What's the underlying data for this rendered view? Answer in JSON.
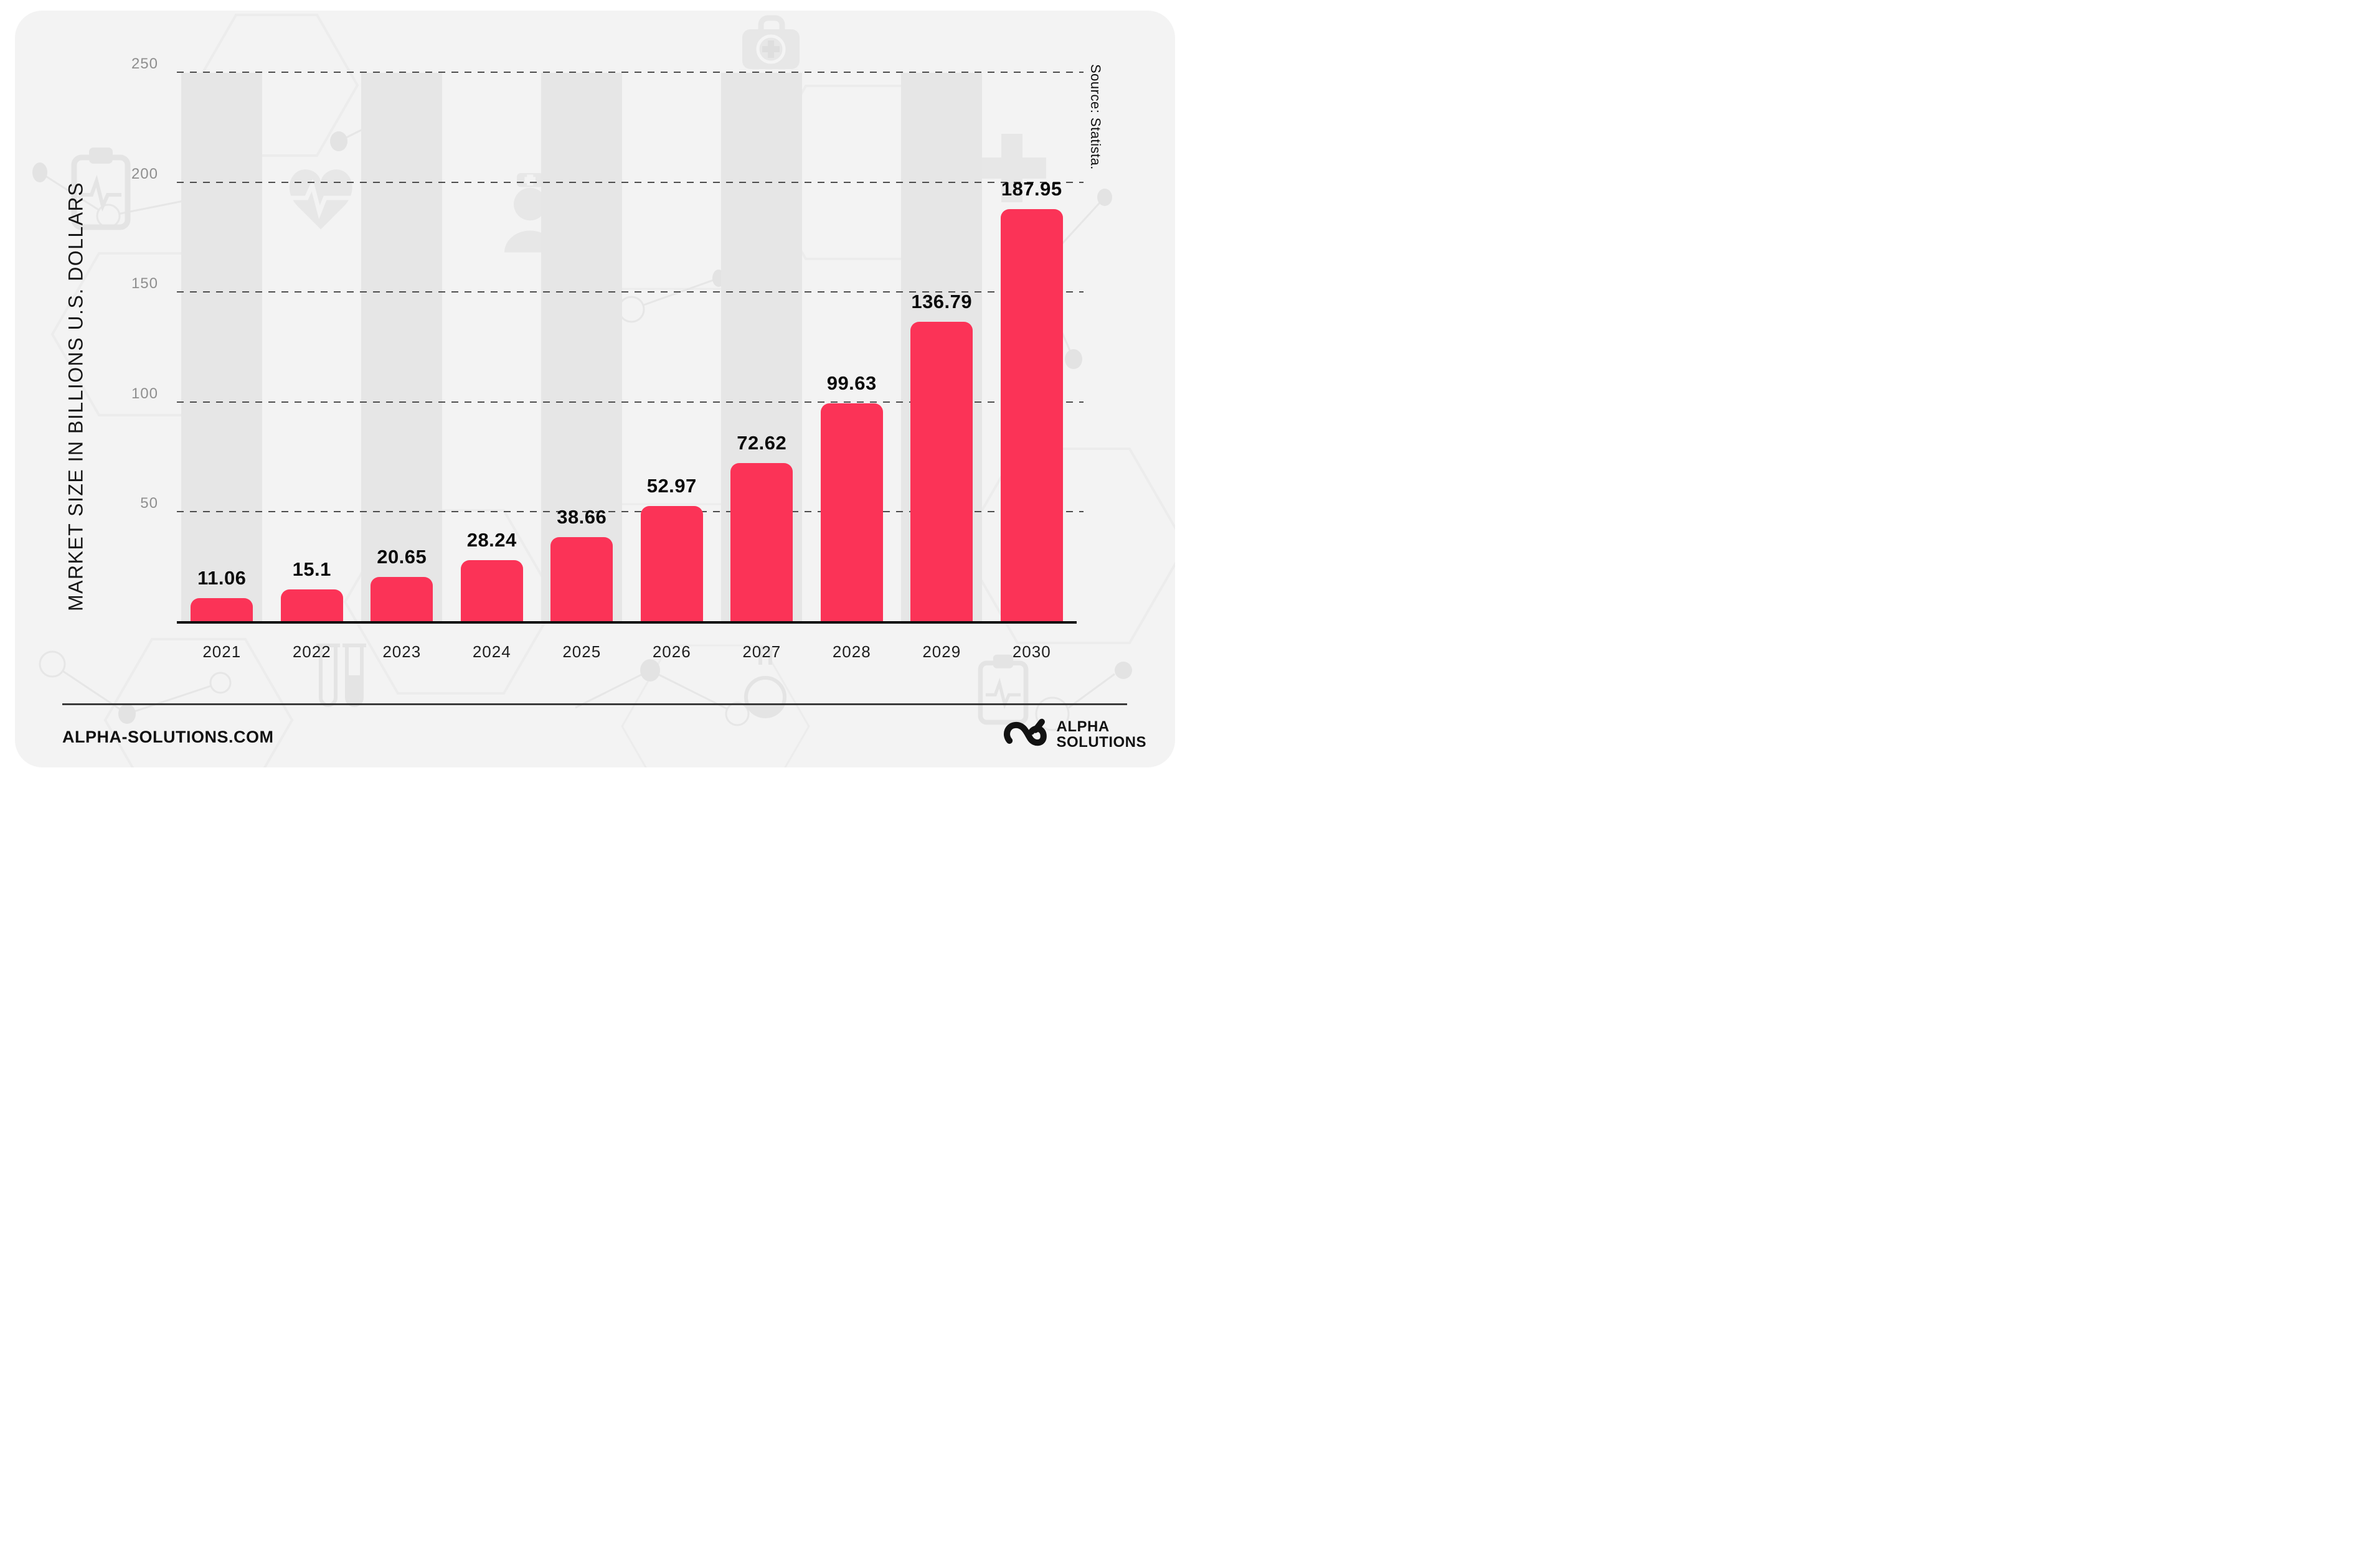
{
  "page": {
    "background": "#ffffff",
    "card_background": "#f3f3f3"
  },
  "chart_data": {
    "type": "bar",
    "title": "",
    "categories": [
      "2021",
      "2022",
      "2023",
      "2024",
      "2025",
      "2026",
      "2027",
      "2028",
      "2029",
      "2030"
    ],
    "values": [
      11.06,
      15.1,
      20.65,
      28.24,
      38.66,
      52.97,
      72.62,
      99.63,
      136.79,
      187.95
    ],
    "bar_labels": [
      "11.06",
      "15.1",
      "20.65",
      "28.24",
      "38.66",
      "52.97",
      "72.62",
      "99.63",
      "136.79",
      "187.95"
    ],
    "ylabel": "MARKET SIZE IN BILLIONS U.S. DOLLARS",
    "xlabel": "",
    "yticks": [
      50,
      100,
      150,
      200,
      250
    ],
    "ytick_labels": [
      "50",
      "100",
      "150",
      "200",
      "250"
    ],
    "ylim": [
      0,
      250
    ],
    "grid": "horizontal-dashed",
    "legend": "none",
    "bar_color": "#fb3357",
    "stripe_color": "#e6e6e6",
    "striped_columns": [
      "2021",
      "2023",
      "2025",
      "2027",
      "2029"
    ],
    "source_note": "Source: Statista."
  },
  "footer": {
    "website": "ALPHA-SOLUTIONS.COM",
    "brand_name_line1": "ALPHA",
    "brand_name_line2": "SOLUTIONS"
  },
  "watermark_icons": [
    "clipboard-pulse-icon",
    "heart-pulse-icon",
    "doctor-icon",
    "first-aid-kit-icon",
    "medical-cross-icon",
    "test-tubes-icon",
    "flask-icon",
    "clipboard-ecg-icon",
    "molecule-network-pattern"
  ],
  "colors": {
    "axis": "#0b0b0b",
    "gridline_dash": "#4d4d4d",
    "tick_label": "#8f8f8f",
    "year_label": "#1e1e1e",
    "value_label": "#0a0a0a",
    "divider": "#3a3a3a",
    "brand_text": "#121212",
    "watermark": "#e7e7e7"
  }
}
